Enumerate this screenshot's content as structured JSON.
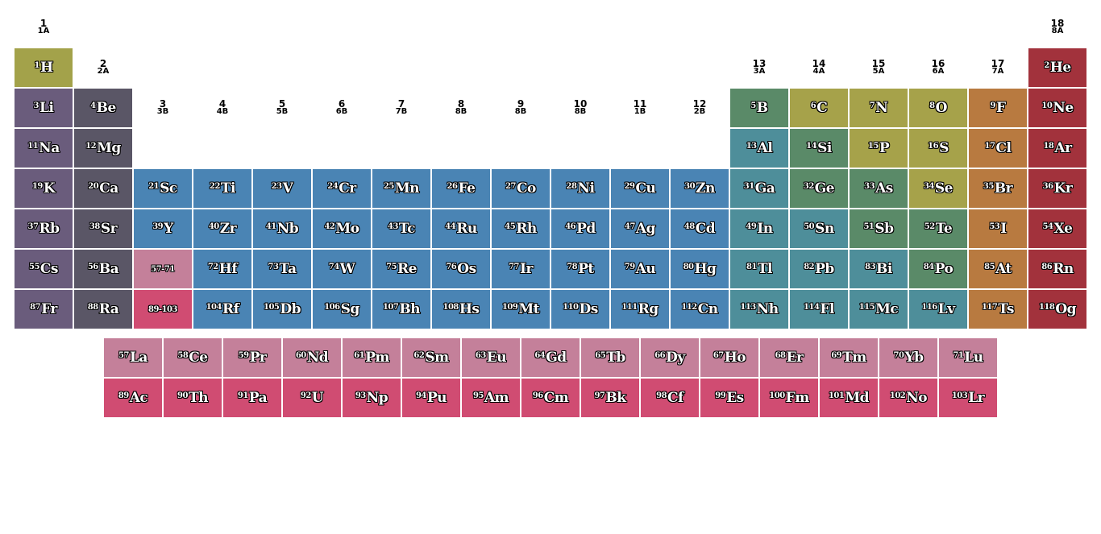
{
  "colors": {
    "hydrogen": "#a3a24a",
    "alkali": "#6a5c7c",
    "alkaline_earth": "#5a5666",
    "transition": "#4a84b4",
    "post_transition": "#4e8e9a",
    "metalloid": "#5a8a68",
    "nonmetal": "#a6a24a",
    "halogen": "#b87a40",
    "noble_gas": "#a2323c",
    "lanthanide": "#c4809a",
    "actinide": "#d04c72"
  },
  "groups": [
    {
      "num": "1",
      "cas": "1A"
    },
    {
      "num": "2",
      "cas": "2A"
    },
    {
      "num": "3",
      "cas": "3B"
    },
    {
      "num": "4",
      "cas": "4B"
    },
    {
      "num": "5",
      "cas": "5B"
    },
    {
      "num": "6",
      "cas": "6B"
    },
    {
      "num": "7",
      "cas": "7B"
    },
    {
      "num": "8",
      "cas": "8B"
    },
    {
      "num": "9",
      "cas": "8B"
    },
    {
      "num": "10",
      "cas": "8B"
    },
    {
      "num": "11",
      "cas": "1B"
    },
    {
      "num": "12",
      "cas": "2B"
    },
    {
      "num": "13",
      "cas": "3A"
    },
    {
      "num": "14",
      "cas": "4A"
    },
    {
      "num": "15",
      "cas": "5A"
    },
    {
      "num": "16",
      "cas": "6A"
    },
    {
      "num": "17",
      "cas": "7A"
    },
    {
      "num": "18",
      "cas": "8A"
    }
  ],
  "elements": [
    [
      "1",
      "H",
      1,
      1,
      "hydrogen"
    ],
    [
      "2",
      "He",
      18,
      1,
      "noble_gas"
    ],
    [
      "3",
      "Li",
      1,
      2,
      "alkali"
    ],
    [
      "4",
      "Be",
      2,
      2,
      "alkaline_earth"
    ],
    [
      "5",
      "B",
      13,
      2,
      "metalloid"
    ],
    [
      "6",
      "C",
      14,
      2,
      "nonmetal"
    ],
    [
      "7",
      "N",
      15,
      2,
      "nonmetal"
    ],
    [
      "8",
      "O",
      16,
      2,
      "nonmetal"
    ],
    [
      "9",
      "F",
      17,
      2,
      "halogen"
    ],
    [
      "10",
      "Ne",
      18,
      2,
      "noble_gas"
    ],
    [
      "11",
      "Na",
      1,
      3,
      "alkali"
    ],
    [
      "12",
      "Mg",
      2,
      3,
      "alkaline_earth"
    ],
    [
      "13",
      "Al",
      13,
      3,
      "post_transition"
    ],
    [
      "14",
      "Si",
      14,
      3,
      "metalloid"
    ],
    [
      "15",
      "P",
      15,
      3,
      "nonmetal"
    ],
    [
      "16",
      "S",
      16,
      3,
      "nonmetal"
    ],
    [
      "17",
      "Cl",
      17,
      3,
      "halogen"
    ],
    [
      "18",
      "Ar",
      18,
      3,
      "noble_gas"
    ],
    [
      "19",
      "K",
      1,
      4,
      "alkali"
    ],
    [
      "20",
      "Ca",
      2,
      4,
      "alkaline_earth"
    ],
    [
      "21",
      "Sc",
      3,
      4,
      "transition"
    ],
    [
      "22",
      "Ti",
      4,
      4,
      "transition"
    ],
    [
      "23",
      "V",
      5,
      4,
      "transition"
    ],
    [
      "24",
      "Cr",
      6,
      4,
      "transition"
    ],
    [
      "25",
      "Mn",
      7,
      4,
      "transition"
    ],
    [
      "26",
      "Fe",
      8,
      4,
      "transition"
    ],
    [
      "27",
      "Co",
      9,
      4,
      "transition"
    ],
    [
      "28",
      "Ni",
      10,
      4,
      "transition"
    ],
    [
      "29",
      "Cu",
      11,
      4,
      "transition"
    ],
    [
      "30",
      "Zn",
      12,
      4,
      "transition"
    ],
    [
      "31",
      "Ga",
      13,
      4,
      "post_transition"
    ],
    [
      "32",
      "Ge",
      14,
      4,
      "metalloid"
    ],
    [
      "33",
      "As",
      15,
      4,
      "metalloid"
    ],
    [
      "34",
      "Se",
      16,
      4,
      "nonmetal"
    ],
    [
      "35",
      "Br",
      17,
      4,
      "halogen"
    ],
    [
      "36",
      "Kr",
      18,
      4,
      "noble_gas"
    ],
    [
      "37",
      "Rb",
      1,
      5,
      "alkali"
    ],
    [
      "38",
      "Sr",
      2,
      5,
      "alkaline_earth"
    ],
    [
      "39",
      "Y",
      3,
      5,
      "transition"
    ],
    [
      "40",
      "Zr",
      4,
      5,
      "transition"
    ],
    [
      "41",
      "Nb",
      5,
      5,
      "transition"
    ],
    [
      "42",
      "Mo",
      6,
      5,
      "transition"
    ],
    [
      "43",
      "Tc",
      7,
      5,
      "transition"
    ],
    [
      "44",
      "Ru",
      8,
      5,
      "transition"
    ],
    [
      "45",
      "Rh",
      9,
      5,
      "transition"
    ],
    [
      "46",
      "Pd",
      10,
      5,
      "transition"
    ],
    [
      "47",
      "Ag",
      11,
      5,
      "transition"
    ],
    [
      "48",
      "Cd",
      12,
      5,
      "transition"
    ],
    [
      "49",
      "In",
      13,
      5,
      "post_transition"
    ],
    [
      "50",
      "Sn",
      14,
      5,
      "post_transition"
    ],
    [
      "51",
      "Sb",
      15,
      5,
      "metalloid"
    ],
    [
      "52",
      "Te",
      16,
      5,
      "metalloid"
    ],
    [
      "53",
      "I",
      17,
      5,
      "halogen"
    ],
    [
      "54",
      "Xe",
      18,
      5,
      "noble_gas"
    ],
    [
      "55",
      "Cs",
      1,
      6,
      "alkali"
    ],
    [
      "56",
      "Ba",
      2,
      6,
      "alkaline_earth"
    ],
    [
      "72",
      "Hf",
      4,
      6,
      "transition"
    ],
    [
      "73",
      "Ta",
      5,
      6,
      "transition"
    ],
    [
      "74",
      "W",
      6,
      6,
      "transition"
    ],
    [
      "75",
      "Re",
      7,
      6,
      "transition"
    ],
    [
      "76",
      "Os",
      8,
      6,
      "transition"
    ],
    [
      "77",
      "Ir",
      9,
      6,
      "transition"
    ],
    [
      "78",
      "Pt",
      10,
      6,
      "transition"
    ],
    [
      "79",
      "Au",
      11,
      6,
      "transition"
    ],
    [
      "80",
      "Hg",
      12,
      6,
      "transition"
    ],
    [
      "81",
      "Tl",
      13,
      6,
      "post_transition"
    ],
    [
      "82",
      "Pb",
      14,
      6,
      "post_transition"
    ],
    [
      "83",
      "Bi",
      15,
      6,
      "post_transition"
    ],
    [
      "84",
      "Po",
      16,
      6,
      "metalloid"
    ],
    [
      "85",
      "At",
      17,
      6,
      "halogen"
    ],
    [
      "86",
      "Rn",
      18,
      6,
      "noble_gas"
    ],
    [
      "87",
      "Fr",
      1,
      7,
      "alkali"
    ],
    [
      "88",
      "Ra",
      2,
      7,
      "alkaline_earth"
    ],
    [
      "104",
      "Rf",
      4,
      7,
      "transition"
    ],
    [
      "105",
      "Db",
      5,
      7,
      "transition"
    ],
    [
      "106",
      "Sg",
      6,
      7,
      "transition"
    ],
    [
      "107",
      "Bh",
      7,
      7,
      "transition"
    ],
    [
      "108",
      "Hs",
      8,
      7,
      "transition"
    ],
    [
      "109",
      "Mt",
      9,
      7,
      "transition"
    ],
    [
      "110",
      "Ds",
      10,
      7,
      "transition"
    ],
    [
      "111",
      "Rg",
      11,
      7,
      "transition"
    ],
    [
      "112",
      "Cn",
      12,
      7,
      "transition"
    ],
    [
      "113",
      "Nh",
      13,
      7,
      "post_transition"
    ],
    [
      "114",
      "Fl",
      14,
      7,
      "post_transition"
    ],
    [
      "115",
      "Mc",
      15,
      7,
      "post_transition"
    ],
    [
      "116",
      "Lv",
      16,
      7,
      "post_transition"
    ],
    [
      "117",
      "Ts",
      17,
      7,
      "halogen"
    ],
    [
      "118",
      "Og",
      18,
      7,
      "noble_gas"
    ],
    [
      "57",
      "La",
      2.5,
      8.2,
      "lanthanide"
    ],
    [
      "58",
      "Ce",
      3.5,
      8.2,
      "lanthanide"
    ],
    [
      "59",
      "Pr",
      4.5,
      8.2,
      "lanthanide"
    ],
    [
      "60",
      "Nd",
      5.5,
      8.2,
      "lanthanide"
    ],
    [
      "61",
      "Pm",
      6.5,
      8.2,
      "lanthanide"
    ],
    [
      "62",
      "Sm",
      7.5,
      8.2,
      "lanthanide"
    ],
    [
      "63",
      "Eu",
      8.5,
      8.2,
      "lanthanide"
    ],
    [
      "64",
      "Gd",
      9.5,
      8.2,
      "lanthanide"
    ],
    [
      "65",
      "Tb",
      10.5,
      8.2,
      "lanthanide"
    ],
    [
      "66",
      "Dy",
      11.5,
      8.2,
      "lanthanide"
    ],
    [
      "67",
      "Ho",
      12.5,
      8.2,
      "lanthanide"
    ],
    [
      "68",
      "Er",
      13.5,
      8.2,
      "lanthanide"
    ],
    [
      "69",
      "Tm",
      14.5,
      8.2,
      "lanthanide"
    ],
    [
      "70",
      "Yb",
      15.5,
      8.2,
      "lanthanide"
    ],
    [
      "71",
      "Lu",
      16.5,
      8.2,
      "lanthanide"
    ],
    [
      "89",
      "Ac",
      2.5,
      9.2,
      "actinide"
    ],
    [
      "90",
      "Th",
      3.5,
      9.2,
      "actinide"
    ],
    [
      "91",
      "Pa",
      4.5,
      9.2,
      "actinide"
    ],
    [
      "92",
      "U",
      5.5,
      9.2,
      "actinide"
    ],
    [
      "93",
      "Np",
      6.5,
      9.2,
      "actinide"
    ],
    [
      "94",
      "Pu",
      7.5,
      9.2,
      "actinide"
    ],
    [
      "95",
      "Am",
      8.5,
      9.2,
      "actinide"
    ],
    [
      "96",
      "Cm",
      9.5,
      9.2,
      "actinide"
    ],
    [
      "97",
      "Bk",
      10.5,
      9.2,
      "actinide"
    ],
    [
      "98",
      "Cf",
      11.5,
      9.2,
      "actinide"
    ],
    [
      "99",
      "Es",
      12.5,
      9.2,
      "actinide"
    ],
    [
      "100",
      "Fm",
      13.5,
      9.2,
      "actinide"
    ],
    [
      "101",
      "Md",
      14.5,
      9.2,
      "actinide"
    ],
    [
      "102",
      "No",
      15.5,
      9.2,
      "actinide"
    ],
    [
      "103",
      "Lr",
      16.5,
      9.2,
      "actinide"
    ]
  ],
  "refs": [
    {
      "label": "57-71",
      "group": 3,
      "period": 6,
      "color": "lanthanide"
    },
    {
      "label": "89-103",
      "group": 3,
      "period": 7,
      "color": "actinide"
    }
  ]
}
